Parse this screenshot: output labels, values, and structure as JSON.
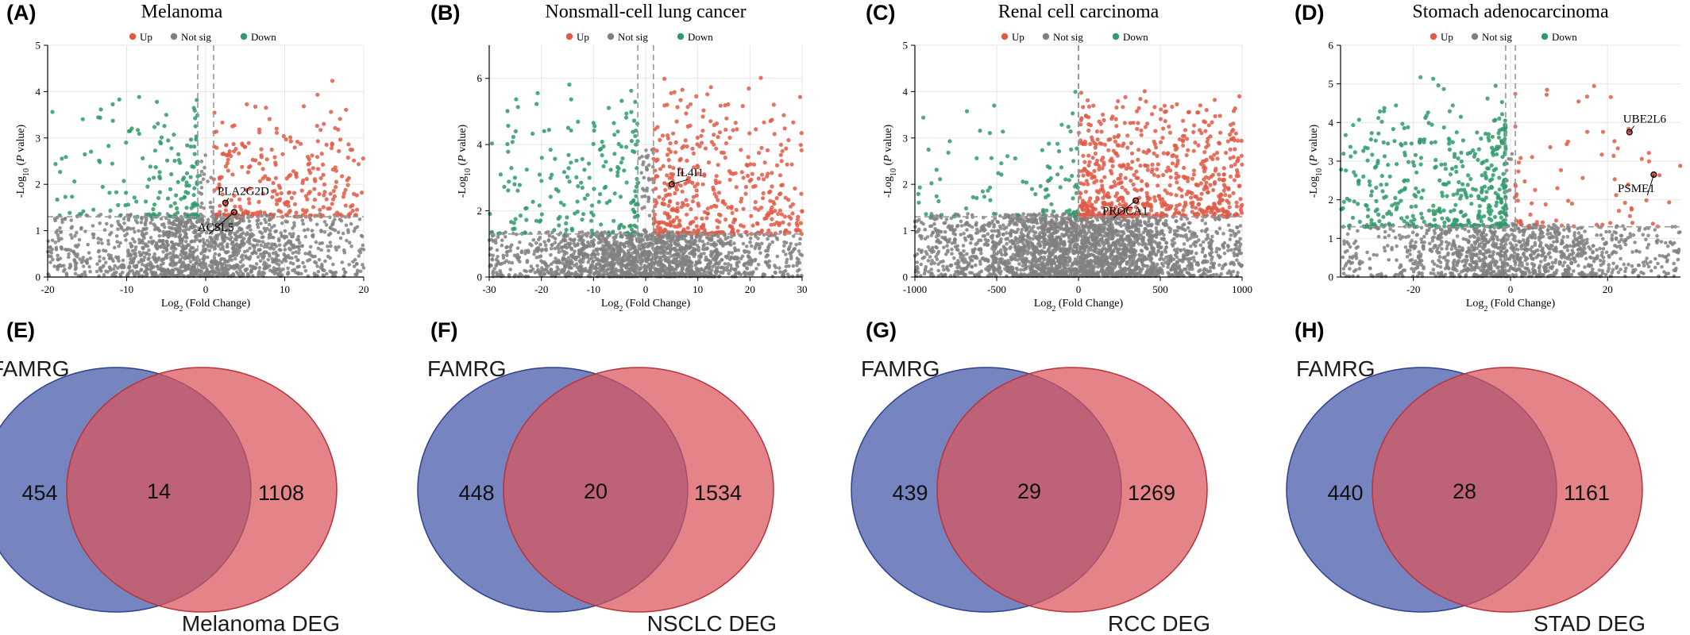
{
  "colors": {
    "up": "#e05a47",
    "notsig": "#808080",
    "down": "#2e9b6a",
    "venn_left": "#4f63ad",
    "venn_right": "#d9555c",
    "grid": "#e6e6e6"
  },
  "legend": {
    "up": "Up",
    "notsig": "Not sig",
    "down": "Down"
  },
  "volcano_xlabel_prefix": "Log",
  "volcano_xlabel_sub": "2",
  "volcano_xlabel_suffix": " (Fold Change)",
  "volcano_ylabel_prefix": "-Log",
  "volcano_ylabel_sub": "10",
  "volcano_ylabel_p": "P",
  "volcano_ylabel_suffix": " value)",
  "chart_data": [
    {
      "type": "scatter",
      "panel": "(A)",
      "title": "Melanoma",
      "xlim": [
        -20,
        20
      ],
      "ylim": [
        0,
        5
      ],
      "xticks": [
        -20,
        -10,
        0,
        10,
        20
      ],
      "yticks": [
        0,
        1,
        2,
        3,
        4,
        5
      ],
      "fc_threshold": 1,
      "p_threshold": 1.3,
      "seed": 11,
      "n_up": 260,
      "n_down": 150,
      "n_ns": 1500,
      "up_range": [
        1,
        20
      ],
      "down_range": [
        -20,
        -1
      ],
      "max_y": 4.3,
      "labeled_points": [
        {
          "label": "PLA2G2D",
          "x": 2.5,
          "y": 1.6
        },
        {
          "label": "ACSL5",
          "x": 3.6,
          "y": 1.4
        }
      ],
      "grid": true,
      "legend_position": "top"
    },
    {
      "type": "scatter",
      "panel": "(B)",
      "title": "Nonsmall-cell lung cancer",
      "xlim": [
        -30,
        30
      ],
      "ylim": [
        0,
        7
      ],
      "xticks": [
        -30,
        -20,
        -10,
        0,
        10,
        20,
        30
      ],
      "yticks": [
        0,
        2,
        4,
        6
      ],
      "fc_threshold": 1.5,
      "p_threshold": 1.3,
      "seed": 23,
      "n_up": 420,
      "n_down": 190,
      "n_ns": 1700,
      "up_range": [
        1.5,
        30
      ],
      "down_range": [
        -30,
        -1.5
      ],
      "max_y": 6.3,
      "labeled_points": [
        {
          "label": "IL4I1",
          "x": 5,
          "y": 2.8
        }
      ],
      "grid": true,
      "legend_position": "top"
    },
    {
      "type": "scatter",
      "panel": "(C)",
      "title": "Renal cell carcinoma",
      "xlim": [
        -1000,
        1000
      ],
      "ylim": [
        0,
        5
      ],
      "xticks": [
        -1000,
        -500,
        0,
        500,
        1000
      ],
      "yticks": [
        0,
        1,
        2,
        3,
        4,
        5
      ],
      "fc_threshold": 1,
      "p_threshold": 1.3,
      "seed": 37,
      "n_up": 650,
      "n_down": 90,
      "n_ns": 2600,
      "up_range": [
        1,
        1000
      ],
      "down_range": [
        -1000,
        -1
      ],
      "max_y": 4.1,
      "labeled_points": [
        {
          "label": "PROCA1",
          "x": 350,
          "y": 1.65
        }
      ],
      "grid": true,
      "legend_position": "top"
    },
    {
      "type": "scatter",
      "panel": "(D)",
      "title": "Stomach adenocarcinoma",
      "xlim": [
        -35,
        35
      ],
      "ylim": [
        0,
        6
      ],
      "xticks": [
        -20,
        0,
        20
      ],
      "yticks": [
        0,
        1,
        2,
        3,
        4,
        5,
        6
      ],
      "fc_threshold": 1,
      "p_threshold": 1.3,
      "seed": 53,
      "n_up": 70,
      "n_down": 420,
      "n_ns": 1200,
      "up_range": [
        1,
        35
      ],
      "down_range": [
        -35,
        -1
      ],
      "max_y": 5.2,
      "labeled_points": [
        {
          "label": "UBE2L6",
          "x": 24.5,
          "y": 3.75
        },
        {
          "label": "PSME1",
          "x": 29.5,
          "y": 2.65
        }
      ],
      "grid": true,
      "legend_position": "top"
    }
  ],
  "venns": [
    {
      "panel": "(E)",
      "left_label": "FAMRG",
      "right_label": "Melanoma DEG",
      "left_only": "454",
      "both": "14",
      "right_only": "1108"
    },
    {
      "panel": "(F)",
      "left_label": "FAMRG",
      "right_label": "NSCLC DEG",
      "left_only": "448",
      "both": "20",
      "right_only": "1534"
    },
    {
      "panel": "(G)",
      "left_label": "FAMRG",
      "right_label": "RCC DEG",
      "left_only": "439",
      "both": "29",
      "right_only": "1269"
    },
    {
      "panel": "(H)",
      "left_label": "FAMRG",
      "right_label": "STAD DEG",
      "left_only": "440",
      "both": "28",
      "right_only": "1161"
    }
  ]
}
